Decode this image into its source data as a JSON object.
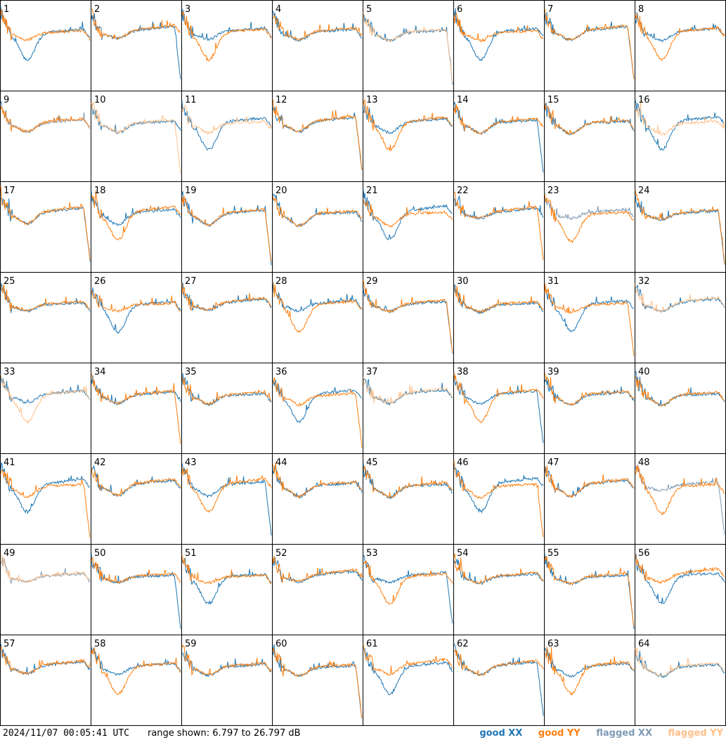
{
  "timestamp": "2024/11/07 00:05:41 UTC",
  "range_text": "range shown: 6.797 to 26.797 dB",
  "legend": [
    {
      "label": "good XX",
      "color": "#1f77b4"
    },
    {
      "label": "good YY",
      "color": "#ff7f0e"
    },
    {
      "label": "flagged XX",
      "color": "#7f9bb5"
    },
    {
      "label": "flagged YY",
      "color": "#ffc08a"
    }
  ],
  "chart_data": {
    "type": "line",
    "title": "",
    "ylim": [
      6.797,
      26.797
    ],
    "unit": "dB",
    "panels": [
      "1",
      "2",
      "3",
      "4",
      "5",
      "6",
      "7",
      "8",
      "9",
      "10",
      "11",
      "12",
      "13",
      "14",
      "15",
      "16",
      "17",
      "18",
      "19",
      "20",
      "21",
      "22",
      "23",
      "24",
      "25",
      "26",
      "27",
      "28",
      "29",
      "30",
      "31",
      "32",
      "33",
      "34",
      "35",
      "36",
      "37",
      "38",
      "39",
      "40",
      "41",
      "42",
      "43",
      "44",
      "45",
      "46",
      "47",
      "48",
      "49",
      "50",
      "51",
      "52",
      "53",
      "54",
      "55",
      "56",
      "57",
      "58",
      "59",
      "60",
      "61",
      "62",
      "63",
      "64"
    ],
    "series": [
      {
        "name": "good XX",
        "color": "#1f77b4"
      },
      {
        "name": "good YY",
        "color": "#ff7f0e"
      },
      {
        "name": "flagged XX",
        "color": "#7f9bb5"
      },
      {
        "name": "flagged YY",
        "color": "#ffc08a"
      }
    ],
    "panel_status": {
      "5": {
        "xx": "good",
        "yy": "flagged"
      },
      "9": {
        "xx": "flagged",
        "yy": "good"
      },
      "10": {
        "xx": "good",
        "yy": "flagged"
      },
      "11": {
        "xx": "good",
        "yy": "flagged"
      },
      "16": {
        "xx": "good",
        "yy": "flagged"
      },
      "23": {
        "xx": "flagged",
        "yy": "good"
      },
      "32": {
        "xx": "good",
        "yy": "flagged"
      },
      "33": {
        "xx": "good",
        "yy": "flagged"
      },
      "37": {
        "xx": "good",
        "yy": "flagged"
      },
      "48": {
        "xx": "flagged",
        "yy": "good"
      },
      "49": {
        "xx": "flagged",
        "yy": "flagged"
      },
      "64": {
        "xx": "good",
        "yy": "flagged"
      }
    }
  }
}
